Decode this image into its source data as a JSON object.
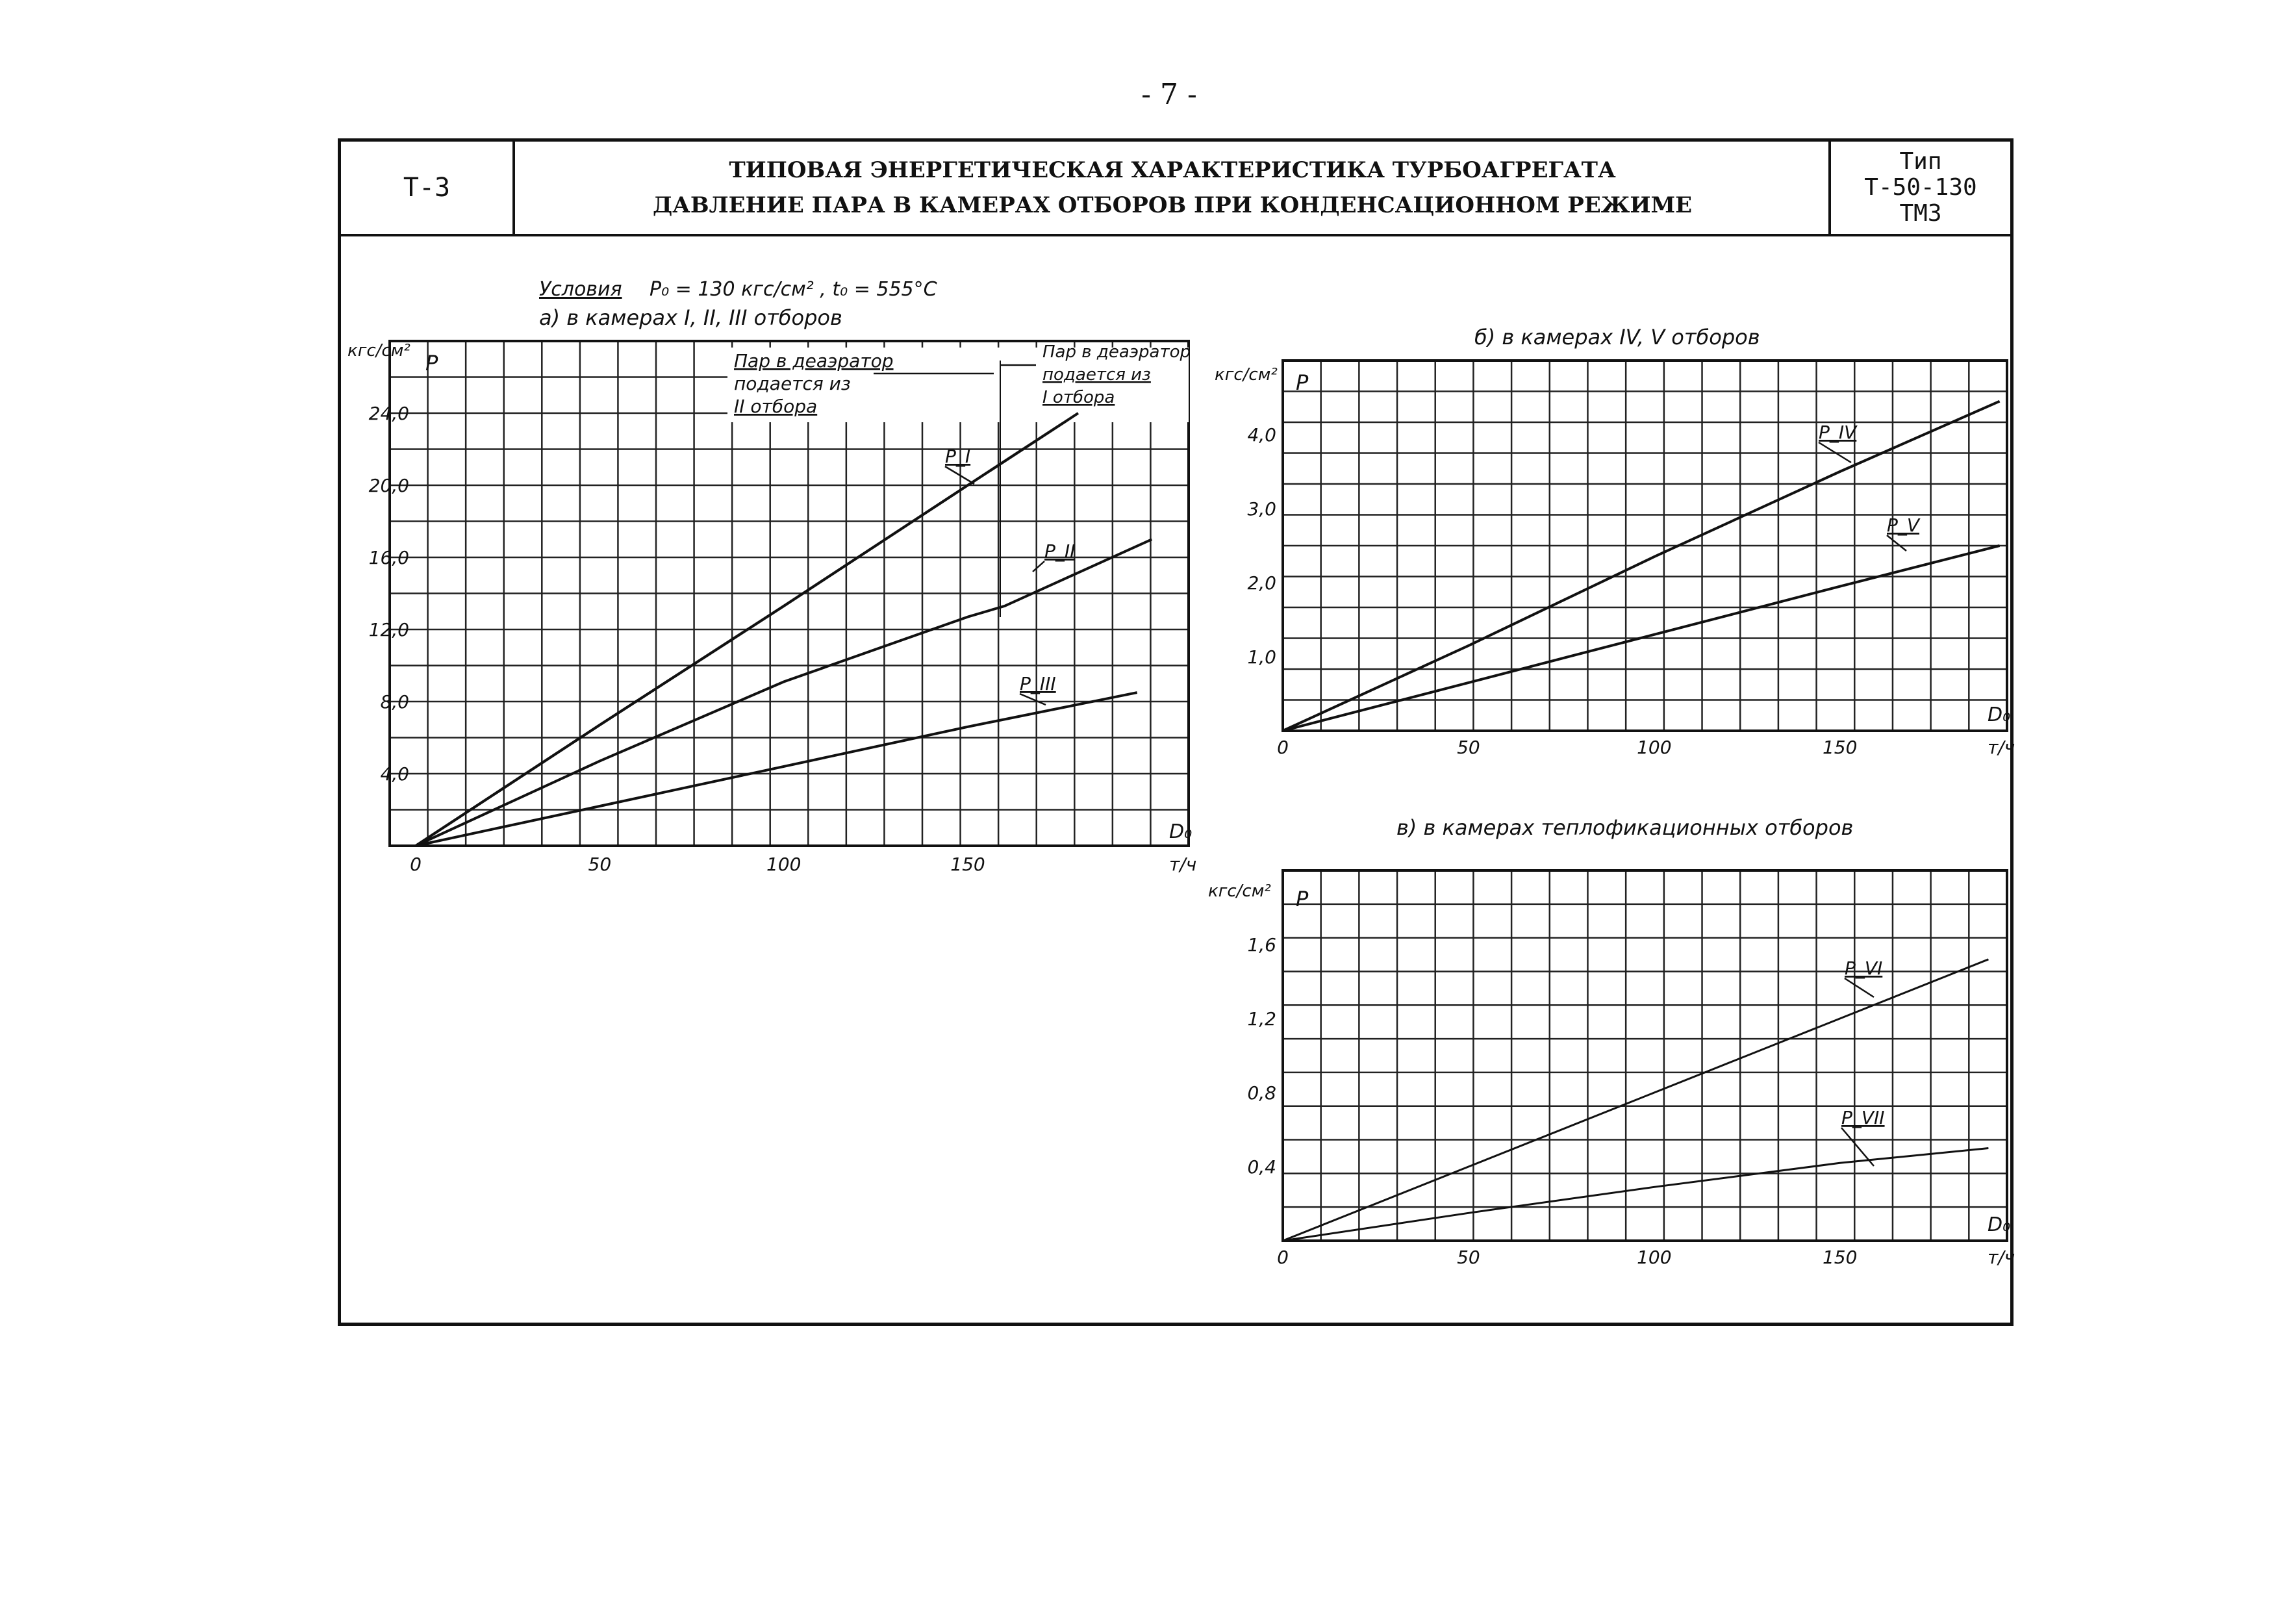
{
  "page_number": "- 7 -",
  "header": {
    "code": "Т-3",
    "title_line1": "ТИПОВАЯ ЭНЕРГЕТИЧЕСКАЯ ХАРАКТЕРИСТИКА ТУРБОАГРЕГАТА",
    "title_line2": "ДАВЛЕНИЕ ПАРА В КАМЕРАХ ОТБОРОВ ПРИ КОНДЕНСАЦИОННОМ РЕЖИМЕ",
    "type_line1": "Тип",
    "type_line2": "Т-50-130",
    "type_line3": "ТМЗ"
  },
  "conditions": {
    "label": "Условия",
    "p0": "P₀ = 130 кгс/см²",
    "t0": "t₀ = 555°C"
  },
  "notes": {
    "deaerator_left_1": "Пар в деаэратор",
    "deaerator_left_2": "подается из",
    "deaerator_left_3": "II отбора",
    "deaerator_right_1": "Пар в деаэратор",
    "deaerator_right_2": "подается из",
    "deaerator_right_3": "I отбора"
  },
  "chart_data": [
    {
      "type": "line",
      "title": "а) в камерах I, II, III отборов",
      "ylabel": "кгс/см²",
      "ysymbol": "P",
      "xlabel": "т/ч",
      "xsymbol": "D₀",
      "xlim": [
        0,
        210
      ],
      "ylim": [
        0,
        28
      ],
      "xticks": [
        0,
        50,
        100,
        150
      ],
      "xtick_labels": [
        "0",
        "50",
        "100",
        "150"
      ],
      "yticks": [
        4,
        8,
        12,
        16,
        20,
        24
      ],
      "ytick_labels": [
        "4,0",
        "8,0",
        "12,0",
        "16,0",
        "20,0",
        "24,0"
      ],
      "grid": true,
      "series": [
        {
          "name": "P_I",
          "x": [
            0,
            50,
            100,
            150,
            180
          ],
          "y": [
            0,
            6.7,
            13.3,
            20.0,
            24.0
          ]
        },
        {
          "name": "P_II",
          "x": [
            0,
            50,
            100,
            150,
            160,
            200
          ],
          "y": [
            0,
            4.7,
            9.1,
            12.7,
            13.3,
            17.0
          ]
        },
        {
          "name": "P_III",
          "x": [
            0,
            50,
            100,
            150,
            196
          ],
          "y": [
            0,
            2.2,
            4.4,
            6.6,
            8.5
          ]
        }
      ],
      "series_labels": [
        "P_I",
        "P_II",
        "P_III"
      ]
    },
    {
      "type": "line",
      "title": "б) в камерах IV, V отборов",
      "ylabel": "кгс/см²",
      "ysymbol": "P",
      "xlabel": "т/ч",
      "xsymbol": "D₀",
      "xlim": [
        0,
        195
      ],
      "ylim": [
        0,
        5
      ],
      "xticks": [
        0,
        50,
        100,
        150
      ],
      "xtick_labels": [
        "0",
        "50",
        "100",
        "150"
      ],
      "yticks": [
        1,
        2,
        3,
        4
      ],
      "ytick_labels": [
        "1,0",
        "2,0",
        "3,0",
        "4,0"
      ],
      "grid": true,
      "series": [
        {
          "name": "P_IV",
          "x": [
            0,
            50,
            100,
            150,
            193
          ],
          "y": [
            0,
            1.15,
            2.35,
            3.5,
            4.45
          ]
        },
        {
          "name": "P_V",
          "x": [
            0,
            50,
            100,
            150,
            193
          ],
          "y": [
            0,
            0.65,
            1.3,
            1.95,
            2.5
          ]
        }
      ],
      "series_labels": [
        "P_IV",
        "P_V"
      ]
    },
    {
      "type": "line",
      "title": "в) в камерах теплофикационных отборов",
      "ylabel": "кгс/см²",
      "ysymbol": "P",
      "xlabel": "т/ч",
      "xsymbol": "D₀",
      "xlim": [
        0,
        195
      ],
      "ylim": [
        0,
        2.0
      ],
      "xticks": [
        0,
        50,
        100,
        150
      ],
      "xtick_labels": [
        "0",
        "50",
        "100",
        "150"
      ],
      "yticks": [
        0.4,
        0.8,
        1.2,
        1.6
      ],
      "ytick_labels": [
        "0,4",
        "0,8",
        "1,2",
        "1,6"
      ],
      "grid": true,
      "series": [
        {
          "name": "P_VI",
          "x": [
            0,
            50,
            100,
            150,
            190
          ],
          "y": [
            0,
            0.4,
            0.8,
            1.2,
            1.52
          ]
        },
        {
          "name": "P_VII",
          "x": [
            0,
            50,
            100,
            150,
            190
          ],
          "y": [
            0,
            0.15,
            0.29,
            0.42,
            0.5
          ]
        }
      ],
      "series_labels": [
        "P_VI",
        "P_VII"
      ]
    }
  ]
}
